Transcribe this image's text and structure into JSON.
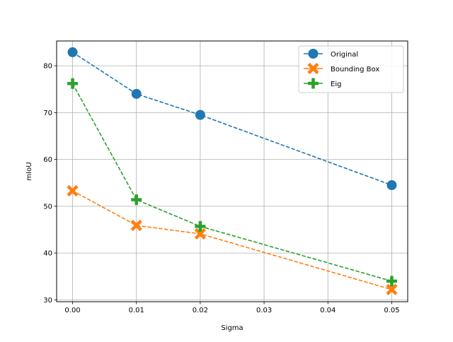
{
  "chart_data": {
    "type": "line",
    "title": "",
    "xlabel": "Sigma",
    "ylabel": "mIoU",
    "x": [
      0.0,
      0.01,
      0.02,
      0.05
    ],
    "xticks": [
      "0.00",
      "0.01",
      "0.02",
      "0.03",
      "0.04",
      "0.05"
    ],
    "yticks": [
      "30",
      "40",
      "50",
      "60",
      "70",
      "80"
    ],
    "xlim": [
      -0.0025,
      0.0525
    ],
    "ylim": [
      29.6,
      85.3
    ],
    "grid": true,
    "legend_position": "top-right",
    "series": [
      {
        "name": "Original",
        "values": [
          82.9,
          74.0,
          69.5,
          54.5
        ],
        "color": "#1f77b4",
        "marker": "circle",
        "linestyle": "dashed"
      },
      {
        "name": "Bounding Box",
        "values": [
          53.3,
          45.9,
          44.1,
          32.2
        ],
        "color": "#ff7f0e",
        "marker": "x",
        "linestyle": "dashed"
      },
      {
        "name": "Eig",
        "values": [
          76.2,
          51.4,
          45.7,
          34.0
        ],
        "color": "#2ca02c",
        "marker": "plus",
        "linestyle": "dashed"
      }
    ]
  }
}
